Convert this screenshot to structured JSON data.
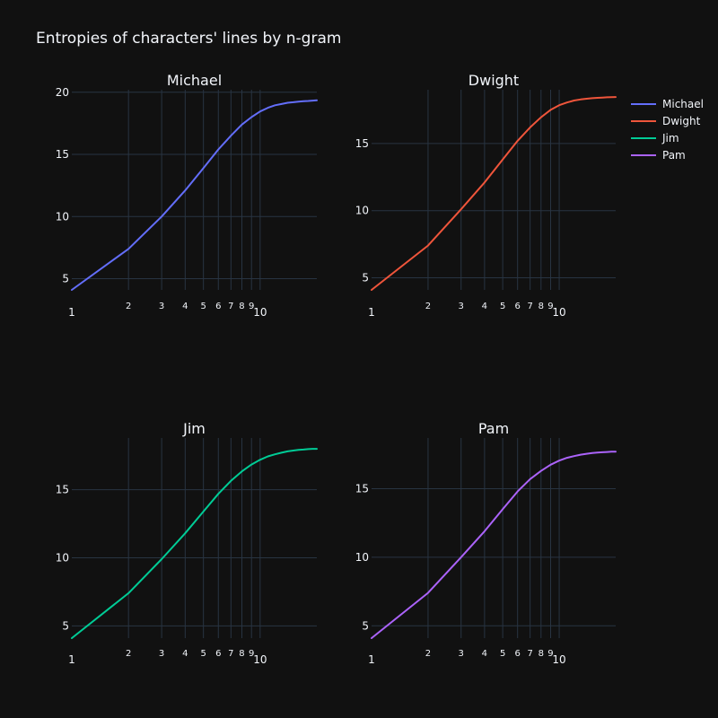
{
  "chart_data": {
    "type": "line",
    "title": "Entropies of characters' lines by n-gram",
    "background": "#111111",
    "grid_color": "#283442",
    "text_color": "#f2f5fa",
    "xscale": "log",
    "grid": true,
    "legend": "top-right",
    "legend_entries": [
      {
        "name": "Michael",
        "color": "#636efa"
      },
      {
        "name": "Dwight",
        "color": "#ef553b"
      },
      {
        "name": "Jim",
        "color": "#00cc96"
      },
      {
        "name": "Pam",
        "color": "#ab63fa"
      }
    ],
    "xticks": [
      {
        "value": 1,
        "label": "1"
      },
      {
        "value": 2,
        "label": "2"
      },
      {
        "value": 3,
        "label": "3"
      },
      {
        "value": 4,
        "label": "4"
      },
      {
        "value": 5,
        "label": "5"
      },
      {
        "value": 6,
        "label": "6"
      },
      {
        "value": 7,
        "label": "7"
      },
      {
        "value": 8,
        "label": "8"
      },
      {
        "value": 9,
        "label": "9"
      },
      {
        "value": 10,
        "label": "10"
      }
    ],
    "subplots": [
      {
        "title": "Michael",
        "color": "#636efa",
        "xlim": [
          1,
          20
        ],
        "ylim": [
          4.1,
          20.2
        ],
        "yticks": [
          5,
          10,
          15,
          20
        ],
        "x": [
          1,
          2,
          3,
          4,
          5,
          6,
          7,
          8,
          9,
          10,
          11,
          12,
          13,
          14,
          15,
          16,
          17,
          18,
          19,
          20
        ],
        "y": [
          4.1,
          7.4,
          10.0,
          12.1,
          13.9,
          15.4,
          16.5,
          17.4,
          18.0,
          18.45,
          18.75,
          18.95,
          19.05,
          19.15,
          19.2,
          19.25,
          19.28,
          19.3,
          19.33,
          19.35
        ]
      },
      {
        "title": "Dwight",
        "color": "#ef553b",
        "xlim": [
          1,
          20
        ],
        "ylim": [
          4.1,
          19.0
        ],
        "yticks": [
          5,
          10,
          15
        ],
        "x": [
          1,
          2,
          3,
          4,
          5,
          6,
          7,
          8,
          9,
          10,
          11,
          12,
          13,
          14,
          15,
          16,
          17,
          18,
          19,
          20
        ],
        "y": [
          4.1,
          7.4,
          10.1,
          12.1,
          13.8,
          15.2,
          16.2,
          16.95,
          17.5,
          17.85,
          18.05,
          18.2,
          18.28,
          18.33,
          18.37,
          18.4,
          18.42,
          18.44,
          18.45,
          18.46
        ]
      },
      {
        "title": "Jim",
        "color": "#00cc96",
        "xlim": [
          1,
          20
        ],
        "ylim": [
          4.1,
          18.8
        ],
        "yticks": [
          5,
          10,
          15
        ],
        "x": [
          1,
          2,
          3,
          4,
          5,
          6,
          7,
          8,
          9,
          10,
          11,
          12,
          13,
          14,
          15,
          16,
          17,
          18,
          19,
          20
        ],
        "y": [
          4.1,
          7.4,
          9.9,
          11.8,
          13.4,
          14.7,
          15.65,
          16.35,
          16.85,
          17.2,
          17.45,
          17.6,
          17.72,
          17.82,
          17.88,
          17.92,
          17.95,
          17.98,
          18.0,
          18.0
        ]
      },
      {
        "title": "Pam",
        "color": "#ab63fa",
        "xlim": [
          1,
          20
        ],
        "ylim": [
          4.1,
          18.7
        ],
        "yticks": [
          5,
          10,
          15
        ],
        "x": [
          1,
          2,
          3,
          4,
          5,
          6,
          7,
          8,
          9,
          10,
          11,
          12,
          13,
          14,
          15,
          16,
          17,
          18,
          19,
          20
        ],
        "y": [
          4.1,
          7.4,
          10.0,
          11.9,
          13.5,
          14.8,
          15.7,
          16.3,
          16.75,
          17.05,
          17.25,
          17.38,
          17.48,
          17.55,
          17.6,
          17.63,
          17.66,
          17.68,
          17.7,
          17.7
        ]
      }
    ]
  }
}
